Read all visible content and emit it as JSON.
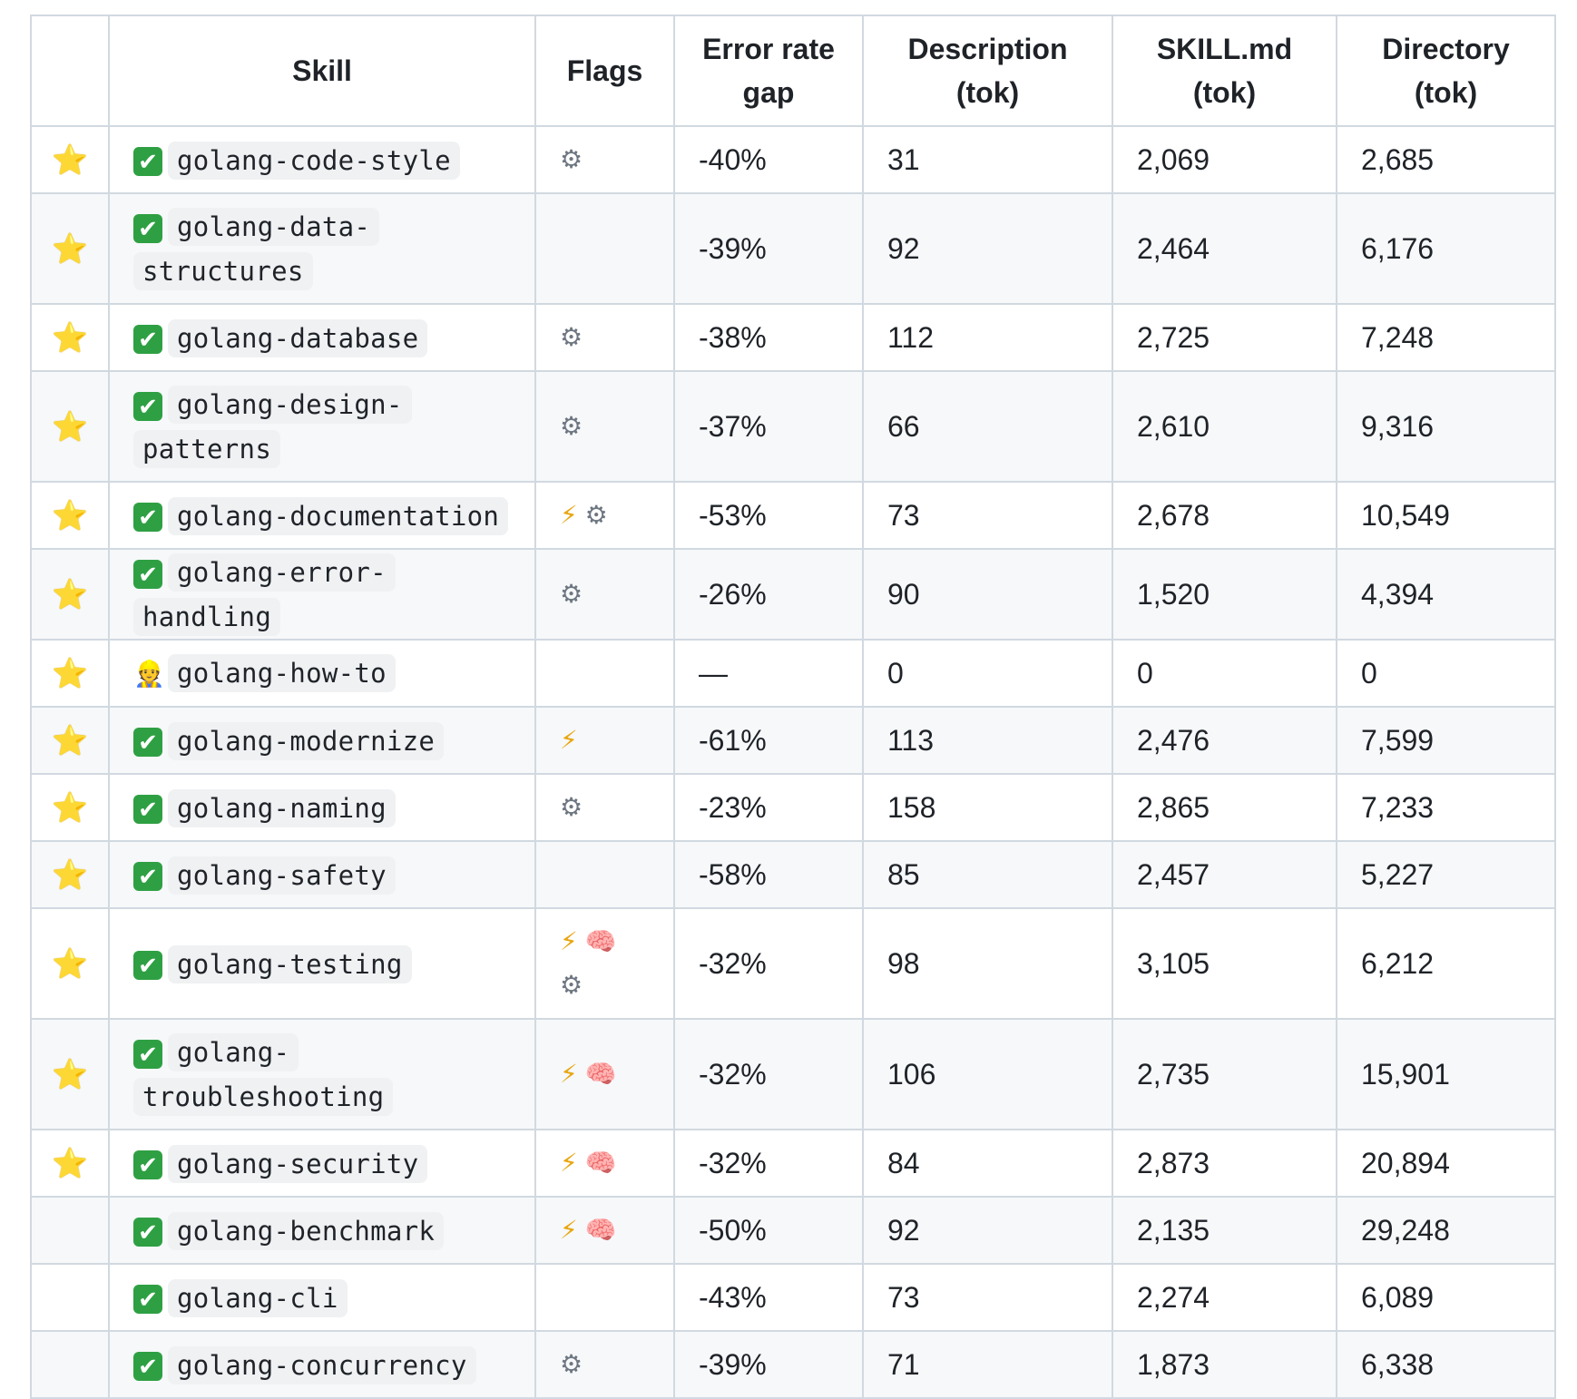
{
  "headers": {
    "star": "",
    "skill": "Skill",
    "flags": "Flags",
    "error_rate": "Error rate gap",
    "description": "Description (tok)",
    "skill_md": "SKILL.md (tok)",
    "directory": "Directory (tok)"
  },
  "icons": {
    "star": "⭐",
    "check": "✔",
    "worker": "👷",
    "bolt": "⚡",
    "gear": "⚙",
    "brain": "🧠"
  },
  "rows": [
    {
      "star": true,
      "status": "check",
      "skill": "golang-code-style",
      "flags": [
        "gear"
      ],
      "error_rate": "-40%",
      "description": "31",
      "skill_md": "2,069",
      "directory": "2,685"
    },
    {
      "star": true,
      "status": "check",
      "skill": "golang-data-structures",
      "flags": [],
      "error_rate": "-39%",
      "description": "92",
      "skill_md": "2,464",
      "directory": "6,176"
    },
    {
      "star": true,
      "status": "check",
      "skill": "golang-database",
      "flags": [
        "gear"
      ],
      "error_rate": "-38%",
      "description": "112",
      "skill_md": "2,725",
      "directory": "7,248"
    },
    {
      "star": true,
      "status": "check",
      "skill": "golang-design-patterns",
      "flags": [
        "gear"
      ],
      "error_rate": "-37%",
      "description": "66",
      "skill_md": "2,610",
      "directory": "9,316"
    },
    {
      "star": true,
      "status": "check",
      "skill": "golang-documentation",
      "flags": [
        "bolt",
        "gear"
      ],
      "error_rate": "-53%",
      "description": "73",
      "skill_md": "2,678",
      "directory": "10,549"
    },
    {
      "star": true,
      "status": "check",
      "skill": "golang-error-handling",
      "flags": [
        "gear"
      ],
      "error_rate": "-26%",
      "description": "90",
      "skill_md": "1,520",
      "directory": "4,394"
    },
    {
      "star": true,
      "status": "worker",
      "skill": "golang-how-to",
      "flags": [],
      "error_rate": "—",
      "description": "0",
      "skill_md": "0",
      "directory": "0"
    },
    {
      "star": true,
      "status": "check",
      "skill": "golang-modernize",
      "flags": [
        "bolt"
      ],
      "error_rate": "-61%",
      "description": "113",
      "skill_md": "2,476",
      "directory": "7,599"
    },
    {
      "star": true,
      "status": "check",
      "skill": "golang-naming",
      "flags": [
        "gear"
      ],
      "error_rate": "-23%",
      "description": "158",
      "skill_md": "2,865",
      "directory": "7,233"
    },
    {
      "star": true,
      "status": "check",
      "skill": "golang-safety",
      "flags": [],
      "error_rate": "-58%",
      "description": "85",
      "skill_md": "2,457",
      "directory": "5,227"
    },
    {
      "star": true,
      "status": "check",
      "skill": "golang-testing",
      "flags": [
        "bolt",
        "brain",
        "gear"
      ],
      "error_rate": "-32%",
      "description": "98",
      "skill_md": "3,105",
      "directory": "6,212"
    },
    {
      "star": true,
      "status": "check",
      "skill": "golang-troubleshooting",
      "flags": [
        "bolt",
        "brain"
      ],
      "error_rate": "-32%",
      "description": "106",
      "skill_md": "2,735",
      "directory": "15,901"
    },
    {
      "star": true,
      "status": "check",
      "skill": "golang-security",
      "flags": [
        "bolt",
        "brain"
      ],
      "error_rate": "-32%",
      "description": "84",
      "skill_md": "2,873",
      "directory": "20,894"
    },
    {
      "star": false,
      "status": "check",
      "skill": "golang-benchmark",
      "flags": [
        "bolt",
        "brain"
      ],
      "error_rate": "-50%",
      "description": "92",
      "skill_md": "2,135",
      "directory": "29,248"
    },
    {
      "star": false,
      "status": "check",
      "skill": "golang-cli",
      "flags": [],
      "error_rate": "-43%",
      "description": "73",
      "skill_md": "2,274",
      "directory": "6,089"
    },
    {
      "star": false,
      "status": "check",
      "skill": "golang-concurrency",
      "flags": [
        "gear"
      ],
      "error_rate": "-39%",
      "description": "71",
      "skill_md": "1,873",
      "directory": "6,338"
    }
  ]
}
